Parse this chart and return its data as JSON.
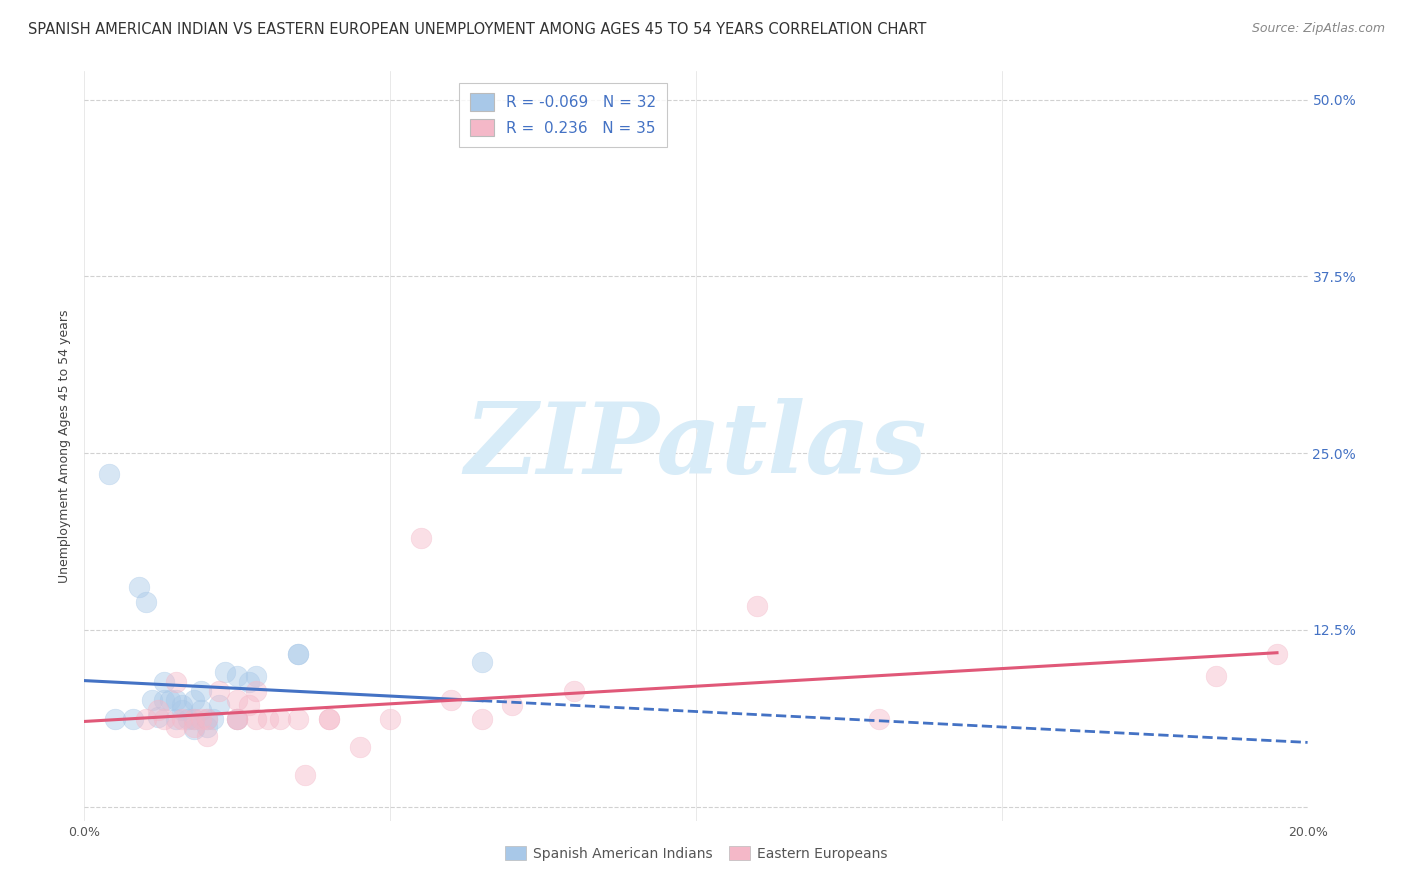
{
  "title": "SPANISH AMERICAN INDIAN VS EASTERN EUROPEAN UNEMPLOYMENT AMONG AGES 45 TO 54 YEARS CORRELATION CHART",
  "source": "Source: ZipAtlas.com",
  "ylabel": "Unemployment Among Ages 45 to 54 years",
  "xlim": [
    0.0,
    0.2
  ],
  "ylim": [
    -0.01,
    0.52
  ],
  "yticks": [
    0.0,
    0.125,
    0.25,
    0.375,
    0.5
  ],
  "ytick_labels": [
    "",
    "12.5%",
    "25.0%",
    "37.5%",
    "50.0%"
  ],
  "xticks": [
    0.0,
    0.05,
    0.1,
    0.15,
    0.2
  ],
  "xtick_labels": [
    "0.0%",
    "",
    "",
    "",
    "20.0%"
  ],
  "grid_color": "#cccccc",
  "background_color": "#ffffff",
  "blue_color": "#a8c8e8",
  "pink_color": "#f4b8c8",
  "blue_line_color": "#4472c4",
  "pink_line_color": "#e05878",
  "legend_R_blue": "-0.069",
  "legend_N_blue": "32",
  "legend_R_pink": "0.236",
  "legend_N_pink": "35",
  "blue_scatter_x": [
    0.004,
    0.009,
    0.01,
    0.011,
    0.012,
    0.013,
    0.013,
    0.014,
    0.015,
    0.015,
    0.016,
    0.016,
    0.017,
    0.018,
    0.018,
    0.018,
    0.019,
    0.019,
    0.02,
    0.02,
    0.021,
    0.022,
    0.023,
    0.025,
    0.025,
    0.027,
    0.028,
    0.035,
    0.035,
    0.065,
    0.005,
    0.008
  ],
  "blue_scatter_y": [
    0.235,
    0.155,
    0.145,
    0.075,
    0.063,
    0.075,
    0.088,
    0.075,
    0.075,
    0.062,
    0.068,
    0.072,
    0.062,
    0.075,
    0.062,
    0.055,
    0.082,
    0.068,
    0.062,
    0.056,
    0.062,
    0.072,
    0.095,
    0.092,
    0.062,
    0.088,
    0.092,
    0.108,
    0.108,
    0.102,
    0.062,
    0.062
  ],
  "pink_scatter_x": [
    0.01,
    0.012,
    0.013,
    0.015,
    0.015,
    0.016,
    0.018,
    0.018,
    0.019,
    0.02,
    0.02,
    0.022,
    0.025,
    0.025,
    0.025,
    0.027,
    0.028,
    0.028,
    0.03,
    0.032,
    0.035,
    0.036,
    0.04,
    0.04,
    0.045,
    0.05,
    0.055,
    0.06,
    0.065,
    0.07,
    0.08,
    0.11,
    0.13,
    0.185,
    0.195
  ],
  "pink_scatter_y": [
    0.062,
    0.068,
    0.062,
    0.088,
    0.056,
    0.062,
    0.062,
    0.056,
    0.062,
    0.062,
    0.05,
    0.082,
    0.062,
    0.075,
    0.062,
    0.072,
    0.062,
    0.082,
    0.062,
    0.062,
    0.062,
    0.022,
    0.062,
    0.062,
    0.042,
    0.062,
    0.19,
    0.075,
    0.062,
    0.072,
    0.082,
    0.142,
    0.062,
    0.092,
    0.108
  ],
  "watermark_text": "ZIPatlas",
  "watermark_color": "#d8ecf8",
  "title_fontsize": 10.5,
  "source_fontsize": 9,
  "axis_label_fontsize": 9,
  "tick_label_fontsize": 9,
  "legend_fontsize": 10,
  "scatter_size": 220,
  "scatter_alpha": 0.45
}
